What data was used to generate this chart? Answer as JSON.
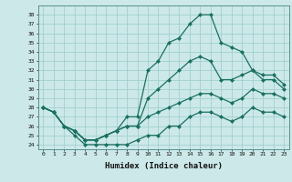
{
  "title": "",
  "xlabel": "Humidex (Indice chaleur)",
  "x": [
    0,
    1,
    2,
    3,
    4,
    5,
    6,
    7,
    8,
    9,
    10,
    11,
    12,
    13,
    14,
    15,
    16,
    17,
    18,
    19,
    20,
    21,
    22,
    23
  ],
  "curve_top": [
    28,
    27.5,
    26,
    25.5,
    24.5,
    24.5,
    25,
    25.5,
    27,
    27,
    32,
    33,
    35,
    35.5,
    37,
    38,
    38,
    35,
    34.5,
    34,
    32,
    31.5,
    31.5,
    30.5
  ],
  "curve_mid": [
    28,
    27.5,
    26,
    25.5,
    24.5,
    24.5,
    25,
    25.5,
    26,
    26,
    29,
    30,
    31,
    32,
    33,
    33.5,
    33,
    31,
    31,
    31.5,
    32,
    31,
    31,
    30
  ],
  "curve_low1": [
    28,
    27.5,
    26,
    25.5,
    24.5,
    24.5,
    25,
    25.5,
    26,
    26,
    27,
    27.5,
    28,
    28.5,
    29,
    29.5,
    29.5,
    29,
    28.5,
    29,
    30,
    29.5,
    29.5,
    29
  ],
  "curve_low2": [
    28,
    27.5,
    26,
    25,
    24,
    24,
    24,
    24,
    24,
    24.5,
    25,
    25,
    26,
    26,
    27,
    27.5,
    27.5,
    27,
    26.5,
    27,
    28,
    27.5,
    27.5,
    27
  ],
  "color": "#1a7060",
  "bg_color": "#cce8e8",
  "grid_color": "#99cccc",
  "ylim_min": 23.5,
  "ylim_max": 39,
  "xlim_min": -0.5,
  "xlim_max": 23.5,
  "yticks": [
    24,
    25,
    26,
    27,
    28,
    29,
    30,
    31,
    32,
    33,
    34,
    35,
    36,
    37,
    38
  ],
  "xticks": [
    0,
    1,
    2,
    3,
    4,
    5,
    6,
    7,
    8,
    9,
    10,
    11,
    12,
    13,
    14,
    15,
    16,
    17,
    18,
    19,
    20,
    21,
    22,
    23
  ]
}
